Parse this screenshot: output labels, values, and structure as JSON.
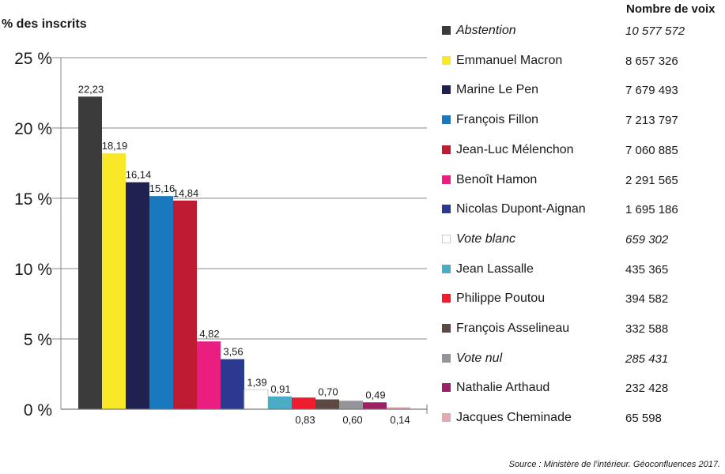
{
  "chart_data": {
    "type": "bar",
    "ylabel": "% des inscrits",
    "ylim": [
      0,
      25
    ],
    "yticks": [
      0,
      5,
      10,
      15,
      20,
      25
    ],
    "ytick_labels": [
      "0 %",
      "5 %",
      "10 %",
      "15 %",
      "20 %",
      "25 %"
    ],
    "grid": true,
    "legend_placement": "right",
    "legend_value_header": "Nombre de voix",
    "categories": [
      "Abstention",
      "Emmanuel Macron",
      "Marine Le Pen",
      "François Fillon",
      "Jean-Luc Mélenchon",
      "Benoît Hamon",
      "Nicolas Dupont-Aignan",
      "Vote blanc",
      "Jean Lassalle",
      "Philippe Poutou",
      "François Asselineau",
      "Vote nul",
      "Nathalie Arthaud",
      "Jacques Cheminade"
    ],
    "values": [
      22.23,
      18.19,
      16.14,
      15.16,
      14.84,
      4.82,
      3.56,
      1.39,
      0.91,
      0.83,
      0.7,
      0.6,
      0.49,
      0.14
    ],
    "value_labels": [
      "22,23",
      "18,19",
      "16,14",
      "15,16",
      "14,84",
      "4,82",
      "3,56",
      "1,39",
      "0,91",
      "0,83",
      "0,70",
      "0,60",
      "0,49",
      "0,14"
    ],
    "votes": [
      "10 577 572",
      "8 657 326",
      "7 679 493",
      "7 213 797",
      "7 060 885",
      "2 291 565",
      "1 695 186",
      "659 302",
      "435 365",
      "394 582",
      "332 588",
      "285 431",
      "232 428",
      "65 598"
    ],
    "italic": [
      true,
      false,
      false,
      false,
      false,
      false,
      false,
      true,
      false,
      false,
      false,
      true,
      false,
      false
    ],
    "colors": [
      "#3b3b3b",
      "#f9e827",
      "#1f2150",
      "#1a78be",
      "#be1b32",
      "#e91e80",
      "#2b3990",
      "#ffffff",
      "#4bacc6",
      "#ed1c2e",
      "#5a4a42",
      "#939598",
      "#9e1f63",
      "#e2a9ae"
    ]
  },
  "source": "Source : Ministère de l’intérieur. Géoconfluences 2017."
}
